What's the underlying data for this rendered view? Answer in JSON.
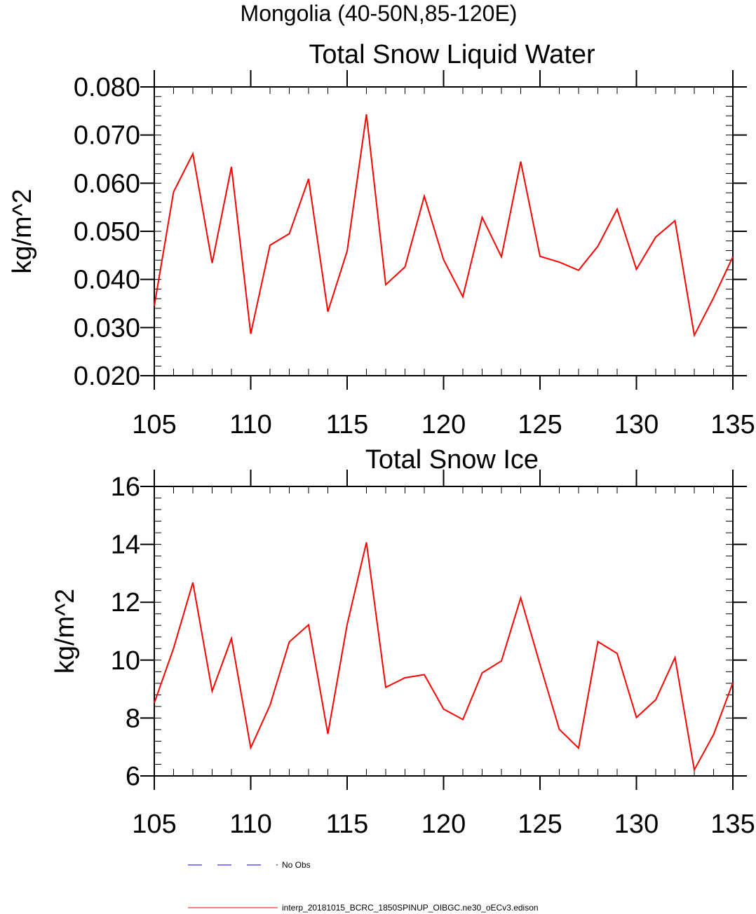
{
  "page": {
    "header": "Mongolia (40-50N,85-120E)"
  },
  "legend": {
    "items": [
      {
        "label": "No Obs",
        "color": "#0000ff",
        "dashed": true
      },
      {
        "label": "interp_20181015_BCRC_1850SPINUP_OIBGC.ne30_oECv3.edison",
        "color": "#ff0000",
        "dashed": false
      }
    ]
  },
  "chart_data": [
    {
      "type": "line",
      "title": "Total Snow Liquid Water",
      "xlabel": "",
      "ylabel": "kg/m^2",
      "xlim": [
        105,
        135
      ],
      "ylim": [
        0.02,
        0.08
      ],
      "x_ticks": [
        105,
        110,
        115,
        120,
        125,
        130,
        135
      ],
      "x_tick_labels": [
        "105",
        "110",
        "115",
        "120",
        "125",
        "130",
        "135"
      ],
      "y_ticks": [
        0.02,
        0.03,
        0.04,
        0.05,
        0.06,
        0.07,
        0.08
      ],
      "y_tick_labels": [
        "0.020",
        "0.030",
        "0.040",
        "0.050",
        "0.060",
        "0.070",
        "0.080"
      ],
      "y_minor_step": 0.002,
      "x_minor_step": 1,
      "grid": false,
      "series": [
        {
          "color": "#ff0000",
          "x": [
            105,
            106,
            107,
            108,
            109,
            110,
            111,
            112,
            113,
            114,
            115,
            116,
            117,
            118,
            119,
            120,
            121,
            122,
            123,
            124,
            125,
            126,
            127,
            128,
            129,
            130,
            131,
            132,
            133,
            134,
            135
          ],
          "values": [
            0.0345,
            0.0582,
            0.0661,
            0.0434,
            0.0634,
            0.0287,
            0.0471,
            0.0495,
            0.0609,
            0.0333,
            0.0459,
            0.0743,
            0.0389,
            0.0426,
            0.0573,
            0.0441,
            0.0364,
            0.0529,
            0.0447,
            0.0645,
            0.0448,
            0.0436,
            0.0419,
            0.0469,
            0.0546,
            0.0421,
            0.0488,
            0.0522,
            0.0284,
            0.0362,
            0.0447
          ]
        }
      ]
    },
    {
      "type": "line",
      "title": "Total Snow Ice",
      "xlabel": "",
      "ylabel": "kg/m^2",
      "xlim": [
        105,
        135
      ],
      "ylim": [
        6,
        16
      ],
      "x_ticks": [
        105,
        110,
        115,
        120,
        125,
        130,
        135
      ],
      "x_tick_labels": [
        "105",
        "110",
        "115",
        "120",
        "125",
        "130",
        "135"
      ],
      "y_ticks": [
        6,
        8,
        10,
        12,
        14,
        16
      ],
      "y_tick_labels": [
        "6",
        "8",
        "10",
        "12",
        "14",
        "16"
      ],
      "y_minor_step": 0.4,
      "x_minor_step": 1,
      "grid": false,
      "series": [
        {
          "color": "#ff0000",
          "x": [
            105,
            106,
            107,
            108,
            109,
            110,
            111,
            112,
            113,
            114,
            115,
            116,
            117,
            118,
            119,
            120,
            121,
            122,
            123,
            124,
            125,
            126,
            127,
            128,
            129,
            130,
            131,
            132,
            133,
            134,
            135
          ],
          "values": [
            8.52,
            10.41,
            12.68,
            8.93,
            10.75,
            6.97,
            8.44,
            10.63,
            11.22,
            7.45,
            11.23,
            14.07,
            9.06,
            9.39,
            9.5,
            8.31,
            7.95,
            9.56,
            9.97,
            12.15,
            9.85,
            7.61,
            6.96,
            10.64,
            10.23,
            8.02,
            8.63,
            10.09,
            6.21,
            7.43,
            9.22
          ]
        }
      ]
    }
  ]
}
